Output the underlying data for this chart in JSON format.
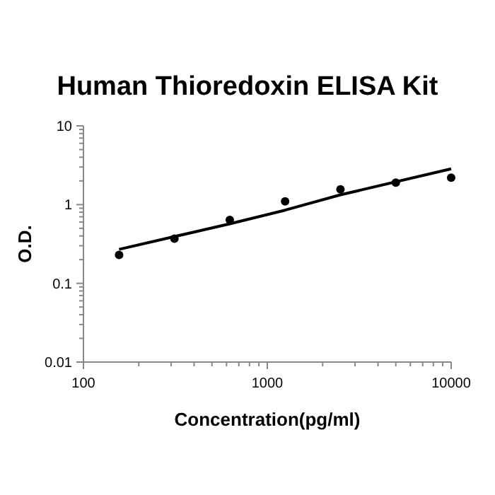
{
  "chart_data": {
    "type": "scatter",
    "title": "Human Thioredoxin ELISA Kit",
    "xlabel": "Concentration(pg/ml)",
    "ylabel": "O.D.",
    "log": "xy",
    "marker": "circle",
    "grid": false,
    "xlim": [
      100,
      10000
    ],
    "ylim": [
      0.01,
      10
    ],
    "xticks": [
      100,
      {
        "value": 200,
        "label": null
      },
      {
        "value": 300,
        "label": null
      },
      {
        "value": 400,
        "label": null
      },
      {
        "value": 500,
        "label": null
      },
      {
        "value": 600,
        "label": null
      },
      {
        "value": 700,
        "label": null
      },
      {
        "value": 800,
        "label": null
      },
      {
        "value": 900,
        "label": null
      },
      1000,
      {
        "value": 2000,
        "label": null
      },
      {
        "value": 3000,
        "label": null
      },
      {
        "value": 4000,
        "label": null
      },
      {
        "value": 5000,
        "label": null
      },
      {
        "value": 6000,
        "label": null
      },
      {
        "value": 7000,
        "label": null
      },
      {
        "value": 8000,
        "label": null
      },
      {
        "value": 9000,
        "label": null
      },
      10000
    ],
    "yticks": [
      0.01,
      {
        "value": 0.02,
        "label": null
      },
      {
        "value": 0.03,
        "label": null
      },
      {
        "value": 0.04,
        "label": null
      },
      {
        "value": 0.05,
        "label": null
      },
      {
        "value": 0.06,
        "label": null
      },
      {
        "value": 0.07,
        "label": null
      },
      {
        "value": 0.08,
        "label": null
      },
      {
        "value": 0.09,
        "label": null
      },
      0.1,
      {
        "value": 0.2,
        "label": null
      },
      {
        "value": 0.3,
        "label": null
      },
      {
        "value": 0.4,
        "label": null
      },
      {
        "value": 0.5,
        "label": null
      },
      {
        "value": 0.6,
        "label": null
      },
      {
        "value": 0.7,
        "label": null
      },
      {
        "value": 0.8,
        "label": null
      },
      {
        "value": 0.9,
        "label": null
      },
      1,
      {
        "value": 2,
        "label": null
      },
      {
        "value": 3,
        "label": null
      },
      {
        "value": 4,
        "label": null
      },
      {
        "value": 5,
        "label": null
      },
      {
        "value": 6,
        "label": null
      },
      {
        "value": 7,
        "label": null
      },
      {
        "value": 8,
        "label": null
      },
      {
        "value": 9,
        "label": null
      },
      10
    ],
    "series": [
      {
        "color": "#000000",
        "x": [
          156.25,
          312.5,
          625,
          1250,
          2500,
          5000,
          10000
        ],
        "values": [
          0.23,
          0.37,
          0.64,
          1.1,
          1.56,
          1.9,
          2.2
        ]
      },
      {
        "type": "line",
        "color": "#000000",
        "marker": "none",
        "x": [
          156.25,
          625,
          1250,
          2500,
          10000
        ],
        "values": [
          0.27,
          0.57,
          0.85,
          1.33,
          2.85
        ]
      }
    ]
  }
}
